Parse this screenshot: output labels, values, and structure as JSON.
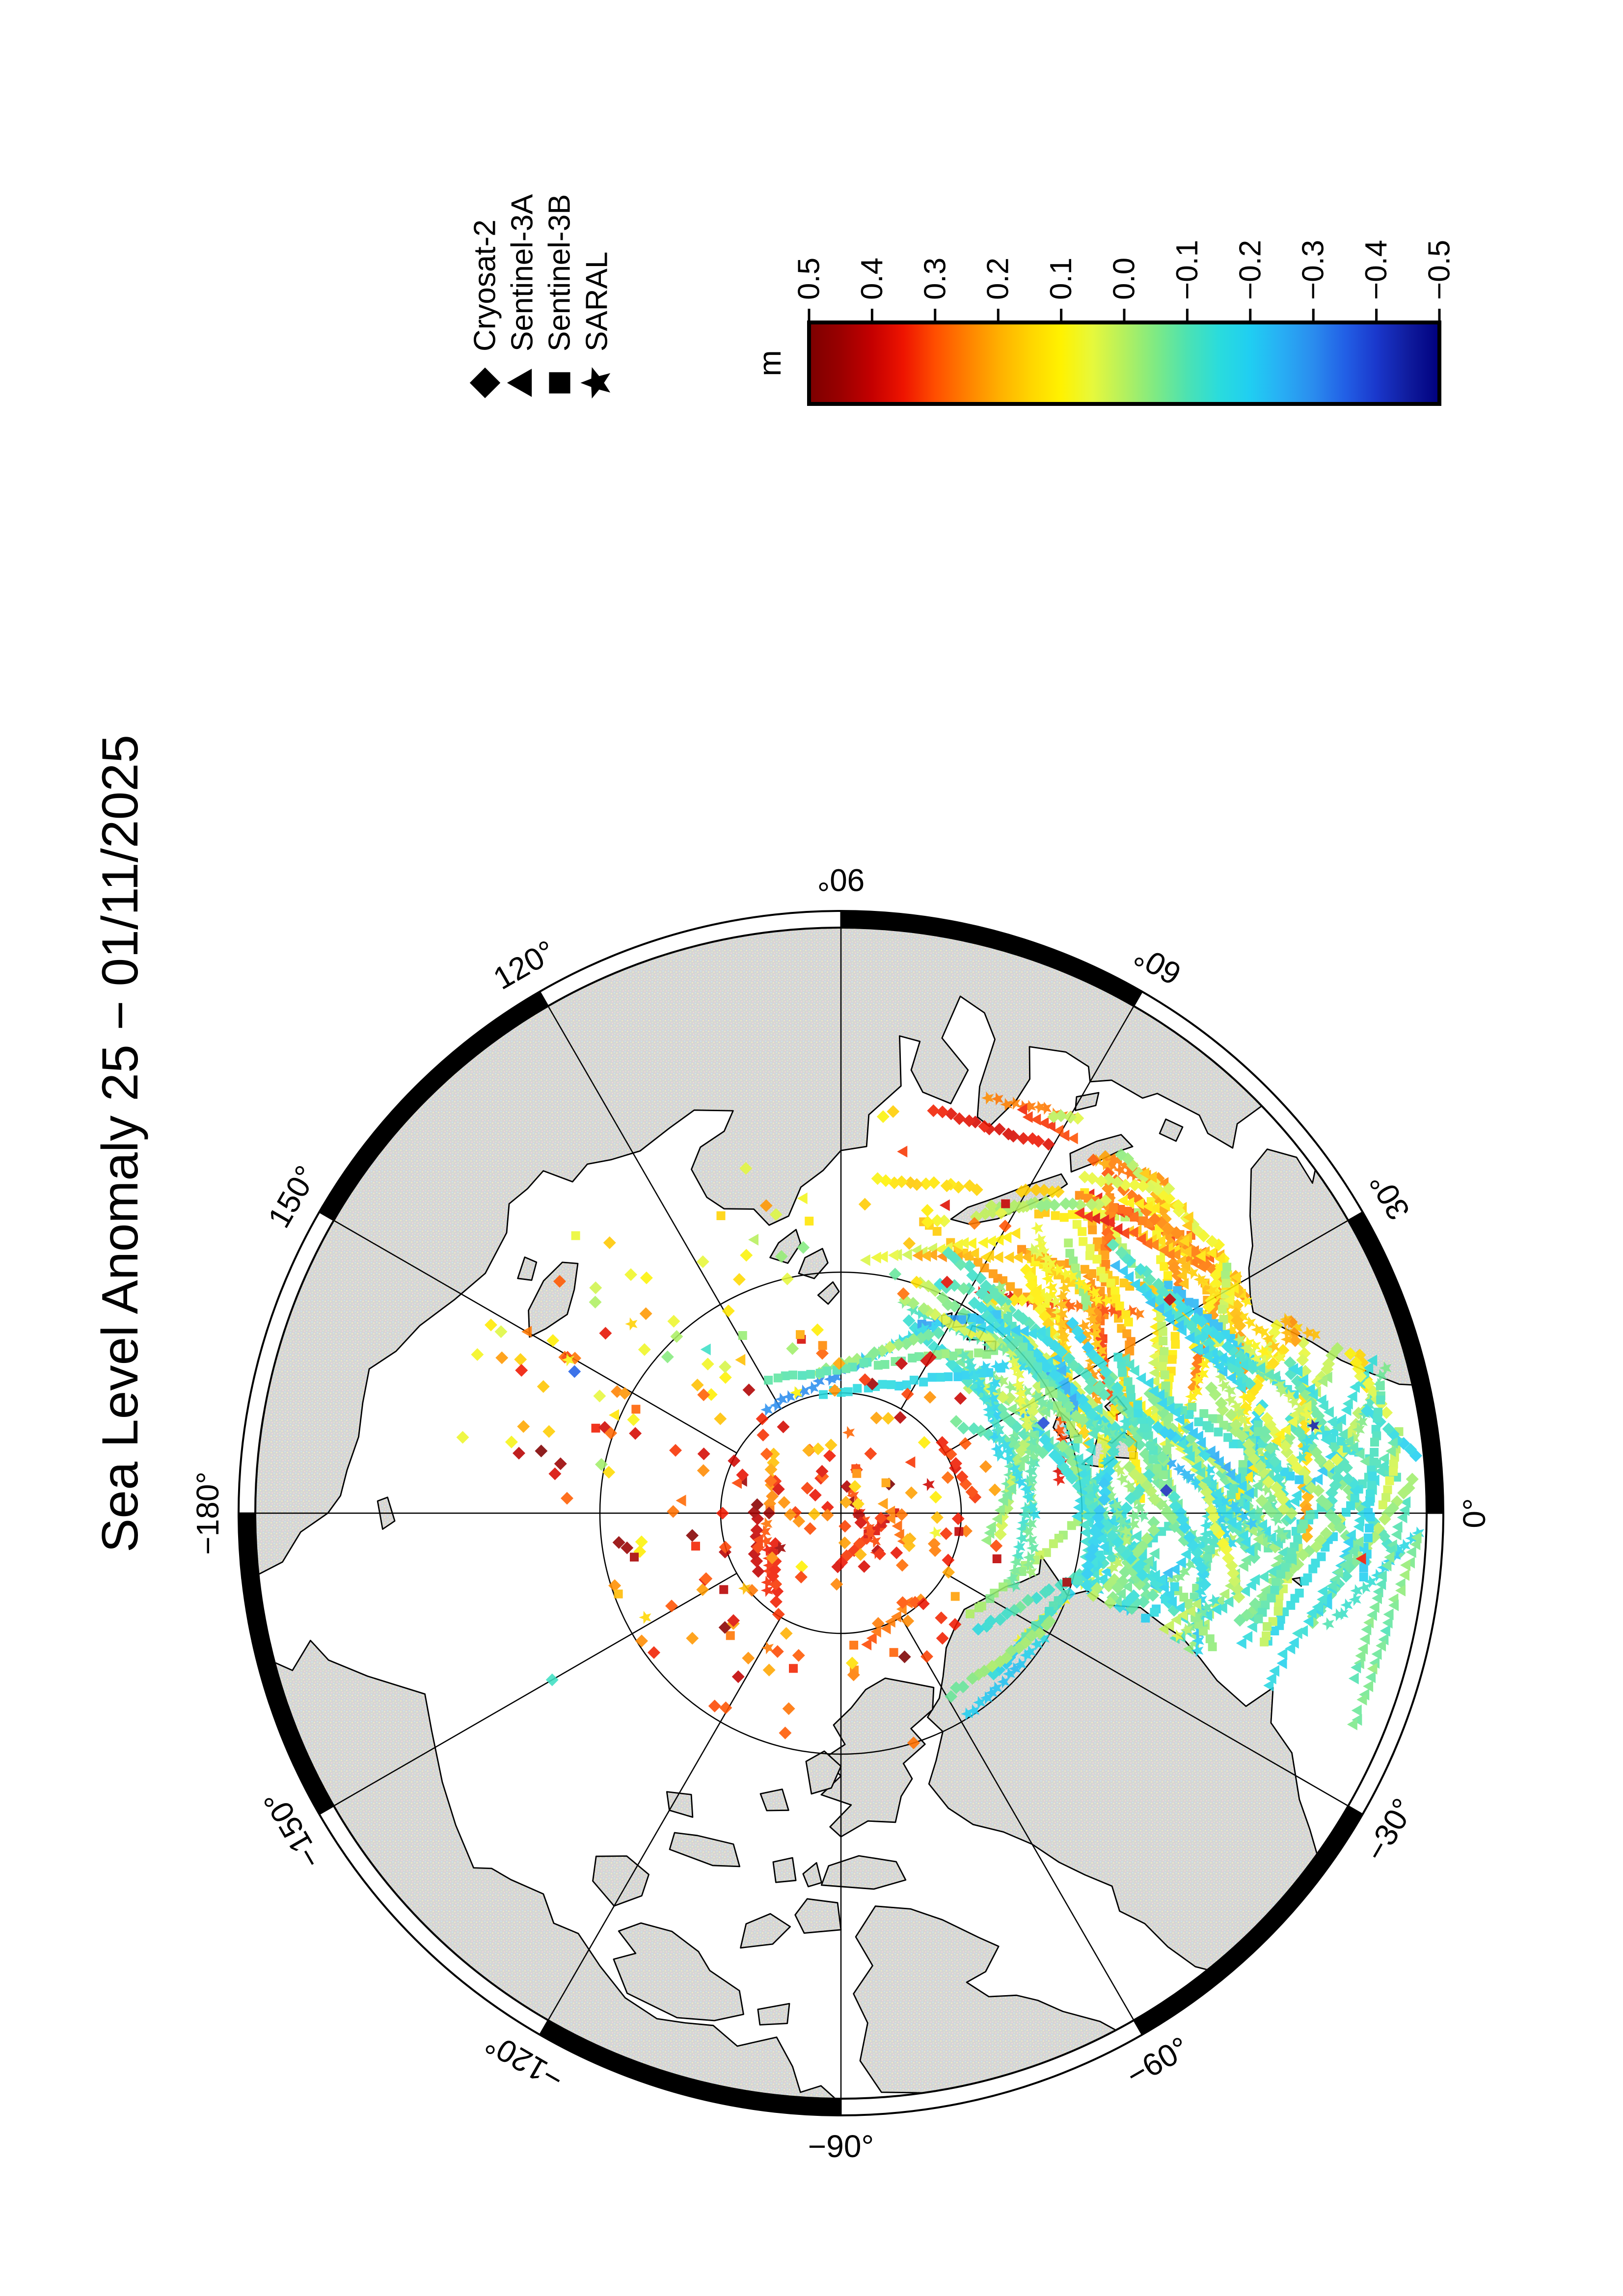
{
  "page": {
    "title": "Sea Level Anomaly 25 − 01/11/2025"
  },
  "legend": {
    "entries": [
      {
        "label": "Cryosat-2",
        "symbol": "diamond"
      },
      {
        "label": "Sentinel-3A",
        "symbol": "triangle"
      },
      {
        "label": "Sentinel-3B",
        "symbol": "square"
      },
      {
        "label": "SARAL",
        "symbol": "star"
      }
    ]
  },
  "colorbar": {
    "unit": "m",
    "tick_labels": [
      "0.5",
      "0.4",
      "0.3",
      "0.2",
      "0.1",
      "0.0",
      "−0.1",
      "−0.2",
      "−0.3",
      "−0.4",
      "−0.5"
    ],
    "tick_values": [
      0.5,
      0.4,
      0.3,
      0.2,
      0.1,
      0.0,
      -0.1,
      -0.2,
      -0.3,
      -0.4,
      -0.5
    ],
    "stops": [
      [
        0.5,
        "#7c0000"
      ],
      [
        0.45,
        "#9a0000"
      ],
      [
        0.4,
        "#c40000"
      ],
      [
        0.35,
        "#ee1400"
      ],
      [
        0.3,
        "#ff4e00"
      ],
      [
        0.25,
        "#ff8000"
      ],
      [
        0.2,
        "#ffae00"
      ],
      [
        0.15,
        "#ffd400"
      ],
      [
        0.1,
        "#fff200"
      ],
      [
        0.05,
        "#e6f83c"
      ],
      [
        0.0,
        "#b4f05e"
      ],
      [
        -0.05,
        "#7eea84"
      ],
      [
        -0.1,
        "#4ce2b2"
      ],
      [
        -0.15,
        "#2adcdc"
      ],
      [
        -0.2,
        "#20cef2"
      ],
      [
        -0.25,
        "#28aef4"
      ],
      [
        -0.3,
        "#2a8cee"
      ],
      [
        -0.35,
        "#2260e6"
      ],
      [
        -0.4,
        "#1a38cc"
      ],
      [
        -0.45,
        "#101c9e"
      ],
      [
        -0.5,
        "#00007e"
      ]
    ]
  },
  "map": {
    "lon_labels": [
      {
        "lon": 0,
        "text": "0°"
      },
      {
        "lon": 30,
        "text": "30°"
      },
      {
        "lon": 60,
        "text": "60°"
      },
      {
        "lon": 90,
        "text": "90°"
      },
      {
        "lon": 120,
        "text": "120°"
      },
      {
        "lon": 150,
        "text": "150°"
      },
      {
        "lon": 180,
        "text": "−180°"
      },
      {
        "lon": -150,
        "text": "−150°"
      },
      {
        "lon": -120,
        "text": "−120°"
      },
      {
        "lon": -90,
        "text": "−90°"
      },
      {
        "lon": -60,
        "text": "−60°"
      },
      {
        "lon": -30,
        "text": "−30°"
      }
    ],
    "graticule": {
      "lon_step_deg": 30,
      "lat_circles_n": [
        85,
        80
      ],
      "boundary_lat_n": 66
    },
    "ring": {
      "black_segments_start_deg": [
        0,
        60,
        120,
        180,
        240,
        300
      ],
      "segment_width_deg": 30
    }
  },
  "chart_data": {
    "type": "scatter",
    "title": "Sea Level Anomaly 25 − 01/11/2025",
    "value_unit": "m",
    "value_range": [
      -0.5,
      0.5
    ],
    "satellites": [
      "Cryosat-2",
      "Sentinel-3A",
      "Sentinel-3B",
      "SARAL"
    ],
    "regions": [
      {
        "name": "barents_north_orange",
        "style": "tracks",
        "lon": [
          26,
          58
        ],
        "colat": [
          12,
          20
        ],
        "mean": 0.17,
        "sd": 0.07,
        "count": 48
      },
      {
        "name": "barents_central",
        "style": "tracks",
        "lon": [
          18,
          46
        ],
        "colat": [
          19,
          23.8
        ],
        "mean": 0.07,
        "sd": 0.06,
        "count": 30
      },
      {
        "name": "norwegian_sea",
        "style": "tracks",
        "lon": [
          -6,
          19
        ],
        "colat": [
          17,
          23.8
        ],
        "mean": -0.06,
        "sd": 0.06,
        "count": 55
      },
      {
        "name": "greenland_sea",
        "style": "tracks",
        "lon": [
          -21,
          10
        ],
        "colat": [
          10.5,
          17
        ],
        "mean": -0.1,
        "sd": 0.06,
        "count": 45
      },
      {
        "name": "svalbard_east",
        "style": "tracks",
        "lon": [
          12,
          38
        ],
        "colat": [
          8,
          12.5
        ],
        "mean": -0.12,
        "sd": 0.05,
        "count": 22
      },
      {
        "name": "franz_josef_area",
        "style": "tracks",
        "lon": [
          40,
          64
        ],
        "colat": [
          7.5,
          11.5
        ],
        "mean": -0.12,
        "sd": 0.06,
        "count": 14
      },
      {
        "name": "southeast_barents_coast",
        "style": "tracks",
        "lon": [
          35,
          52
        ],
        "colat": [
          20,
          23.5
        ],
        "mean": 0.15,
        "sd": 0.07,
        "count": 12
      },
      {
        "name": "central_arctic_tracks",
        "style": "tracks",
        "lon": [
          -180,
          180
        ],
        "colat": [
          1,
          6.5
        ],
        "mean": 0.3,
        "sd": 0.07,
        "count": 10,
        "short": true
      },
      {
        "name": "central_arctic",
        "style": "singles",
        "lon": [
          -180,
          180
        ],
        "colat": [
          0.5,
          7.5
        ],
        "mean": 0.3,
        "sd": 0.09,
        "count": 150
      },
      {
        "name": "beaufort_chukchi",
        "style": "singles",
        "lon": [
          -175,
          -120
        ],
        "colat": [
          8,
          17
        ],
        "mean": 0.27,
        "sd": 0.1,
        "count": 38
      },
      {
        "name": "east_siberian",
        "style": "singles",
        "lon": [
          140,
          178
        ],
        "colat": [
          9,
          16
        ],
        "mean": 0.28,
        "sd": 0.09,
        "count": 26
      },
      {
        "name": "laptev",
        "style": "singles",
        "lon": [
          95,
          140
        ],
        "colat": [
          7,
          14
        ],
        "mean": 0.12,
        "sd": 0.11,
        "count": 30
      },
      {
        "name": "kara",
        "style": "singles",
        "lon": [
          58,
          88
        ],
        "colat": [
          9,
          17
        ],
        "mean": 0.2,
        "sd": 0.12,
        "count": 16
      },
      {
        "name": "canadian_arctic",
        "style": "singles",
        "lon": [
          -120,
          -60
        ],
        "colat": [
          8,
          19
        ],
        "mean": 0.28,
        "sd": 0.1,
        "count": 13
      },
      {
        "name": "bering",
        "style": "singles",
        "lon": [
          168,
          195
        ],
        "colat": [
          20,
          23.8
        ],
        "mean": 0.25,
        "sd": 0.08,
        "count": 8
      },
      {
        "name": "siberian_shelf_green",
        "style": "singles",
        "lon": [
          100,
          175
        ],
        "colat": [
          10,
          17
        ],
        "mean": 0.05,
        "sd": 0.06,
        "count": 18
      }
    ],
    "outliers": [
      {
        "lon": 152,
        "colat": 12.5,
        "value": -0.35,
        "symbol": "diamond"
      },
      {
        "lon": -150,
        "colat": 13.8,
        "value": -0.12,
        "symbol": "diamond"
      },
      {
        "lon": 10.5,
        "colat": 19.8,
        "value": -0.45,
        "symbol": "star"
      },
      {
        "lon": 24,
        "colat": 9.2,
        "value": -0.38,
        "symbol": "diamond"
      },
      {
        "lon": 4,
        "colat": 13.5,
        "value": -0.42,
        "symbol": "diamond"
      },
      {
        "lon": -17,
        "colat": 9.8,
        "value": 0.45,
        "symbol": "square"
      },
      {
        "lon": 33,
        "colat": 16.2,
        "value": 0.42,
        "symbol": "diamond"
      },
      {
        "lon": -5,
        "colat": 21.5,
        "value": 0.35,
        "symbol": "triangle"
      },
      {
        "lon": 62,
        "colat": 14.5,
        "value": 0.4,
        "symbol": "square"
      },
      {
        "lon": 170,
        "colat": 11.8,
        "value": 0.45,
        "symbol": "diamond"
      }
    ]
  }
}
